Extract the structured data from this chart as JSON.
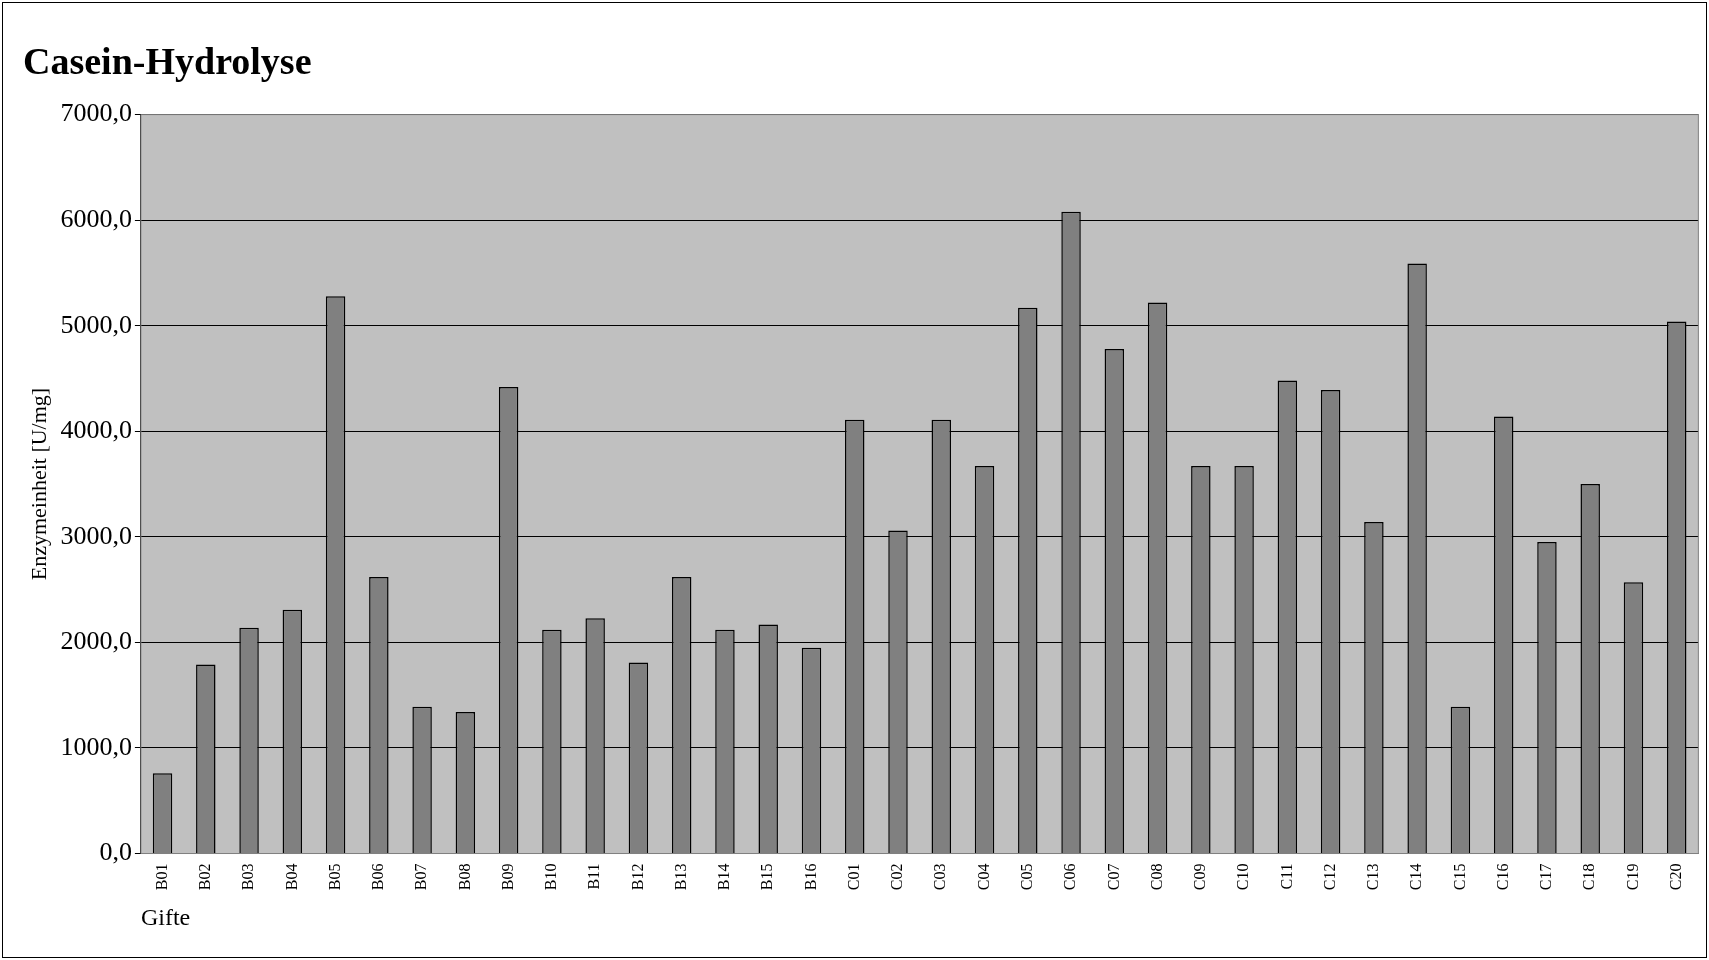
{
  "chart_data": {
    "type": "bar",
    "title": "Casein-Hydrolyse",
    "xlabel": "Gifte",
    "ylabel": "Enzymeinheit [U/mg]",
    "categories": [
      "B01",
      "B02",
      "B03",
      "B04",
      "B05",
      "B06",
      "B07",
      "B08",
      "B09",
      "B10",
      "B11",
      "B12",
      "B13",
      "B14",
      "B15",
      "B16",
      "C01",
      "C02",
      "C03",
      "C04",
      "C05",
      "C06",
      "C07",
      "C08",
      "C09",
      "C10",
      "C11",
      "C12",
      "C13",
      "C14",
      "C15",
      "C16",
      "C17",
      "C18",
      "C19",
      "C20"
    ],
    "values": [
      760,
      1790,
      2140,
      2310,
      5280,
      2620,
      1390,
      1340,
      4420,
      2120,
      2230,
      1810,
      2620,
      2120,
      2170,
      1950,
      4110,
      3060,
      4110,
      3670,
      5170,
      6080,
      4780,
      5220,
      3670,
      3670,
      4480,
      4390,
      3140,
      5590,
      1390,
      4140,
      2950,
      3500,
      2570,
      5040
    ],
    "color": "#808080",
    "ylim": [
      0,
      7000
    ],
    "yticks": [
      {
        "value": 0,
        "label": "0,0"
      },
      {
        "value": 1000,
        "label": "1000,0"
      },
      {
        "value": 2000,
        "label": "2000,0"
      },
      {
        "value": 3000,
        "label": "3000,0"
      },
      {
        "value": 4000,
        "label": "4000,0"
      },
      {
        "value": 5000,
        "label": "5000,0"
      },
      {
        "value": 6000,
        "label": "6000,0"
      },
      {
        "value": 7000,
        "label": "7000,0"
      }
    ],
    "grid": "y"
  }
}
